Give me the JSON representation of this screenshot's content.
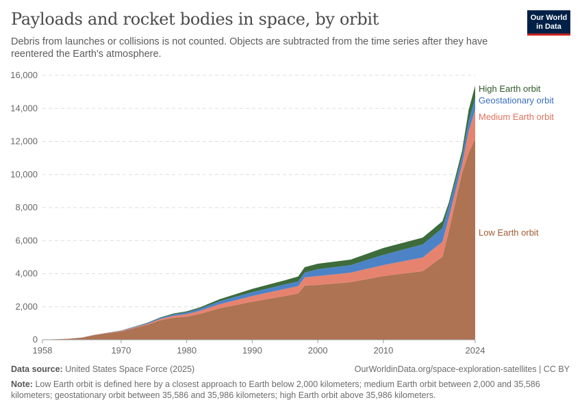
{
  "title": "Payloads and rocket bodies in space, by orbit",
  "subtitle": "Debris from launches or collisions is not counted. Objects are subtracted from the time series after they have reentered the Earth's atmosphere.",
  "logo": {
    "line1": "Our World",
    "line2": "in Data"
  },
  "footer": {
    "source_label": "Data source:",
    "source": "United States Space Force (2025)",
    "url": "OurWorldinData.org/space-exploration-satellites | CC BY",
    "note_label": "Note:",
    "note": "Low Earth orbit is defined here by a closest approach to Earth below 2,000 kilometers; medium Earth orbit between 2,000 and 35,586 kilometers; geostationary orbit between 35,586 and 35,986 kilometers; high Earth orbit above 35,986 kilometers."
  },
  "chart_data": {
    "type": "area",
    "stacked": true,
    "title": "Payloads and rocket bodies in space, by orbit",
    "xlabel": "",
    "ylabel": "",
    "xlim": [
      1958,
      2024
    ],
    "ylim": [
      0,
      16000
    ],
    "grid": true,
    "legend": "right-inline",
    "x_ticks": [
      "1958",
      "1970",
      "1980",
      "1990",
      "2000",
      "2010",
      "2024"
    ],
    "y_ticks": [
      "0",
      "2,000",
      "4,000",
      "6,000",
      "8,000",
      "10,000",
      "12,000",
      "14,000",
      "16,000"
    ],
    "x": [
      1958,
      1960,
      1962,
      1964,
      1966,
      1968,
      1970,
      1972,
      1974,
      1976,
      1978,
      1980,
      1982,
      1985,
      1990,
      1995,
      1997,
      1998,
      2000,
      2005,
      2010,
      2016,
      2019,
      2020,
      2022,
      2023,
      2024
    ],
    "series": [
      {
        "name": "Low Earth orbit",
        "color": "#ad7352",
        "values": [
          5,
          30,
          60,
          125,
          290,
          400,
          500,
          700,
          900,
          1180,
          1330,
          1400,
          1560,
          1900,
          2300,
          2650,
          2800,
          3275,
          3315,
          3480,
          3855,
          4150,
          5015,
          6590,
          10070,
          11300,
          12150
        ]
      },
      {
        "name": "Medium Earth orbit",
        "color": "#e6836f",
        "values": [
          0,
          0,
          2,
          5,
          10,
          20,
          30,
          45,
          60,
          80,
          120,
          150,
          190,
          250,
          350,
          430,
          450,
          500,
          540,
          580,
          665,
          830,
          915,
          830,
          540,
          1300,
          1780
        ]
      },
      {
        "name": "Geostationary orbit",
        "color": "#4c83c7",
        "values": [
          0,
          0,
          0,
          2,
          5,
          10,
          20,
          35,
          50,
          70,
          90,
          110,
          130,
          180,
          230,
          270,
          280,
          290,
          415,
          460,
          620,
          790,
          825,
          700,
          500,
          650,
          700
        ]
      },
      {
        "name": "High Earth orbit",
        "color": "#3d6b3b",
        "values": [
          0,
          0,
          0,
          1,
          3,
          5,
          10,
          15,
          20,
          30,
          50,
          60,
          80,
          120,
          200,
          250,
          300,
          330,
          330,
          330,
          415,
          410,
          415,
          210,
          330,
          650,
          750
        ]
      }
    ]
  }
}
